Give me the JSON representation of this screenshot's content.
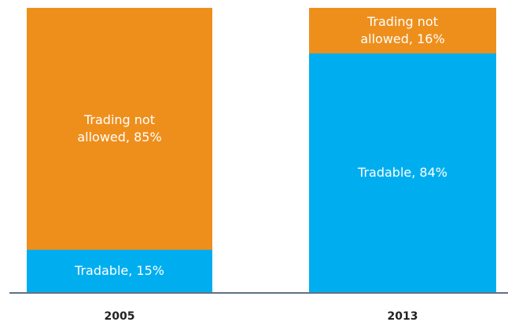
{
  "chart_data": {
    "type": "stacked_bar",
    "categories": [
      "2005",
      "2013"
    ],
    "series": [
      {
        "color": "#00aeef",
        "values": [
          15,
          84
        ],
        "value_labels": [
          "Tradable, 15%",
          "Tradable, 84%"
        ]
      },
      {
        "color": "#ee8f1c",
        "values": [
          85,
          16
        ],
        "value_labels": [
          "Trading not allowed, 85%",
          "Trading not allowed, 16%"
        ]
      }
    ],
    "ylim": [
      0,
      100
    ]
  }
}
